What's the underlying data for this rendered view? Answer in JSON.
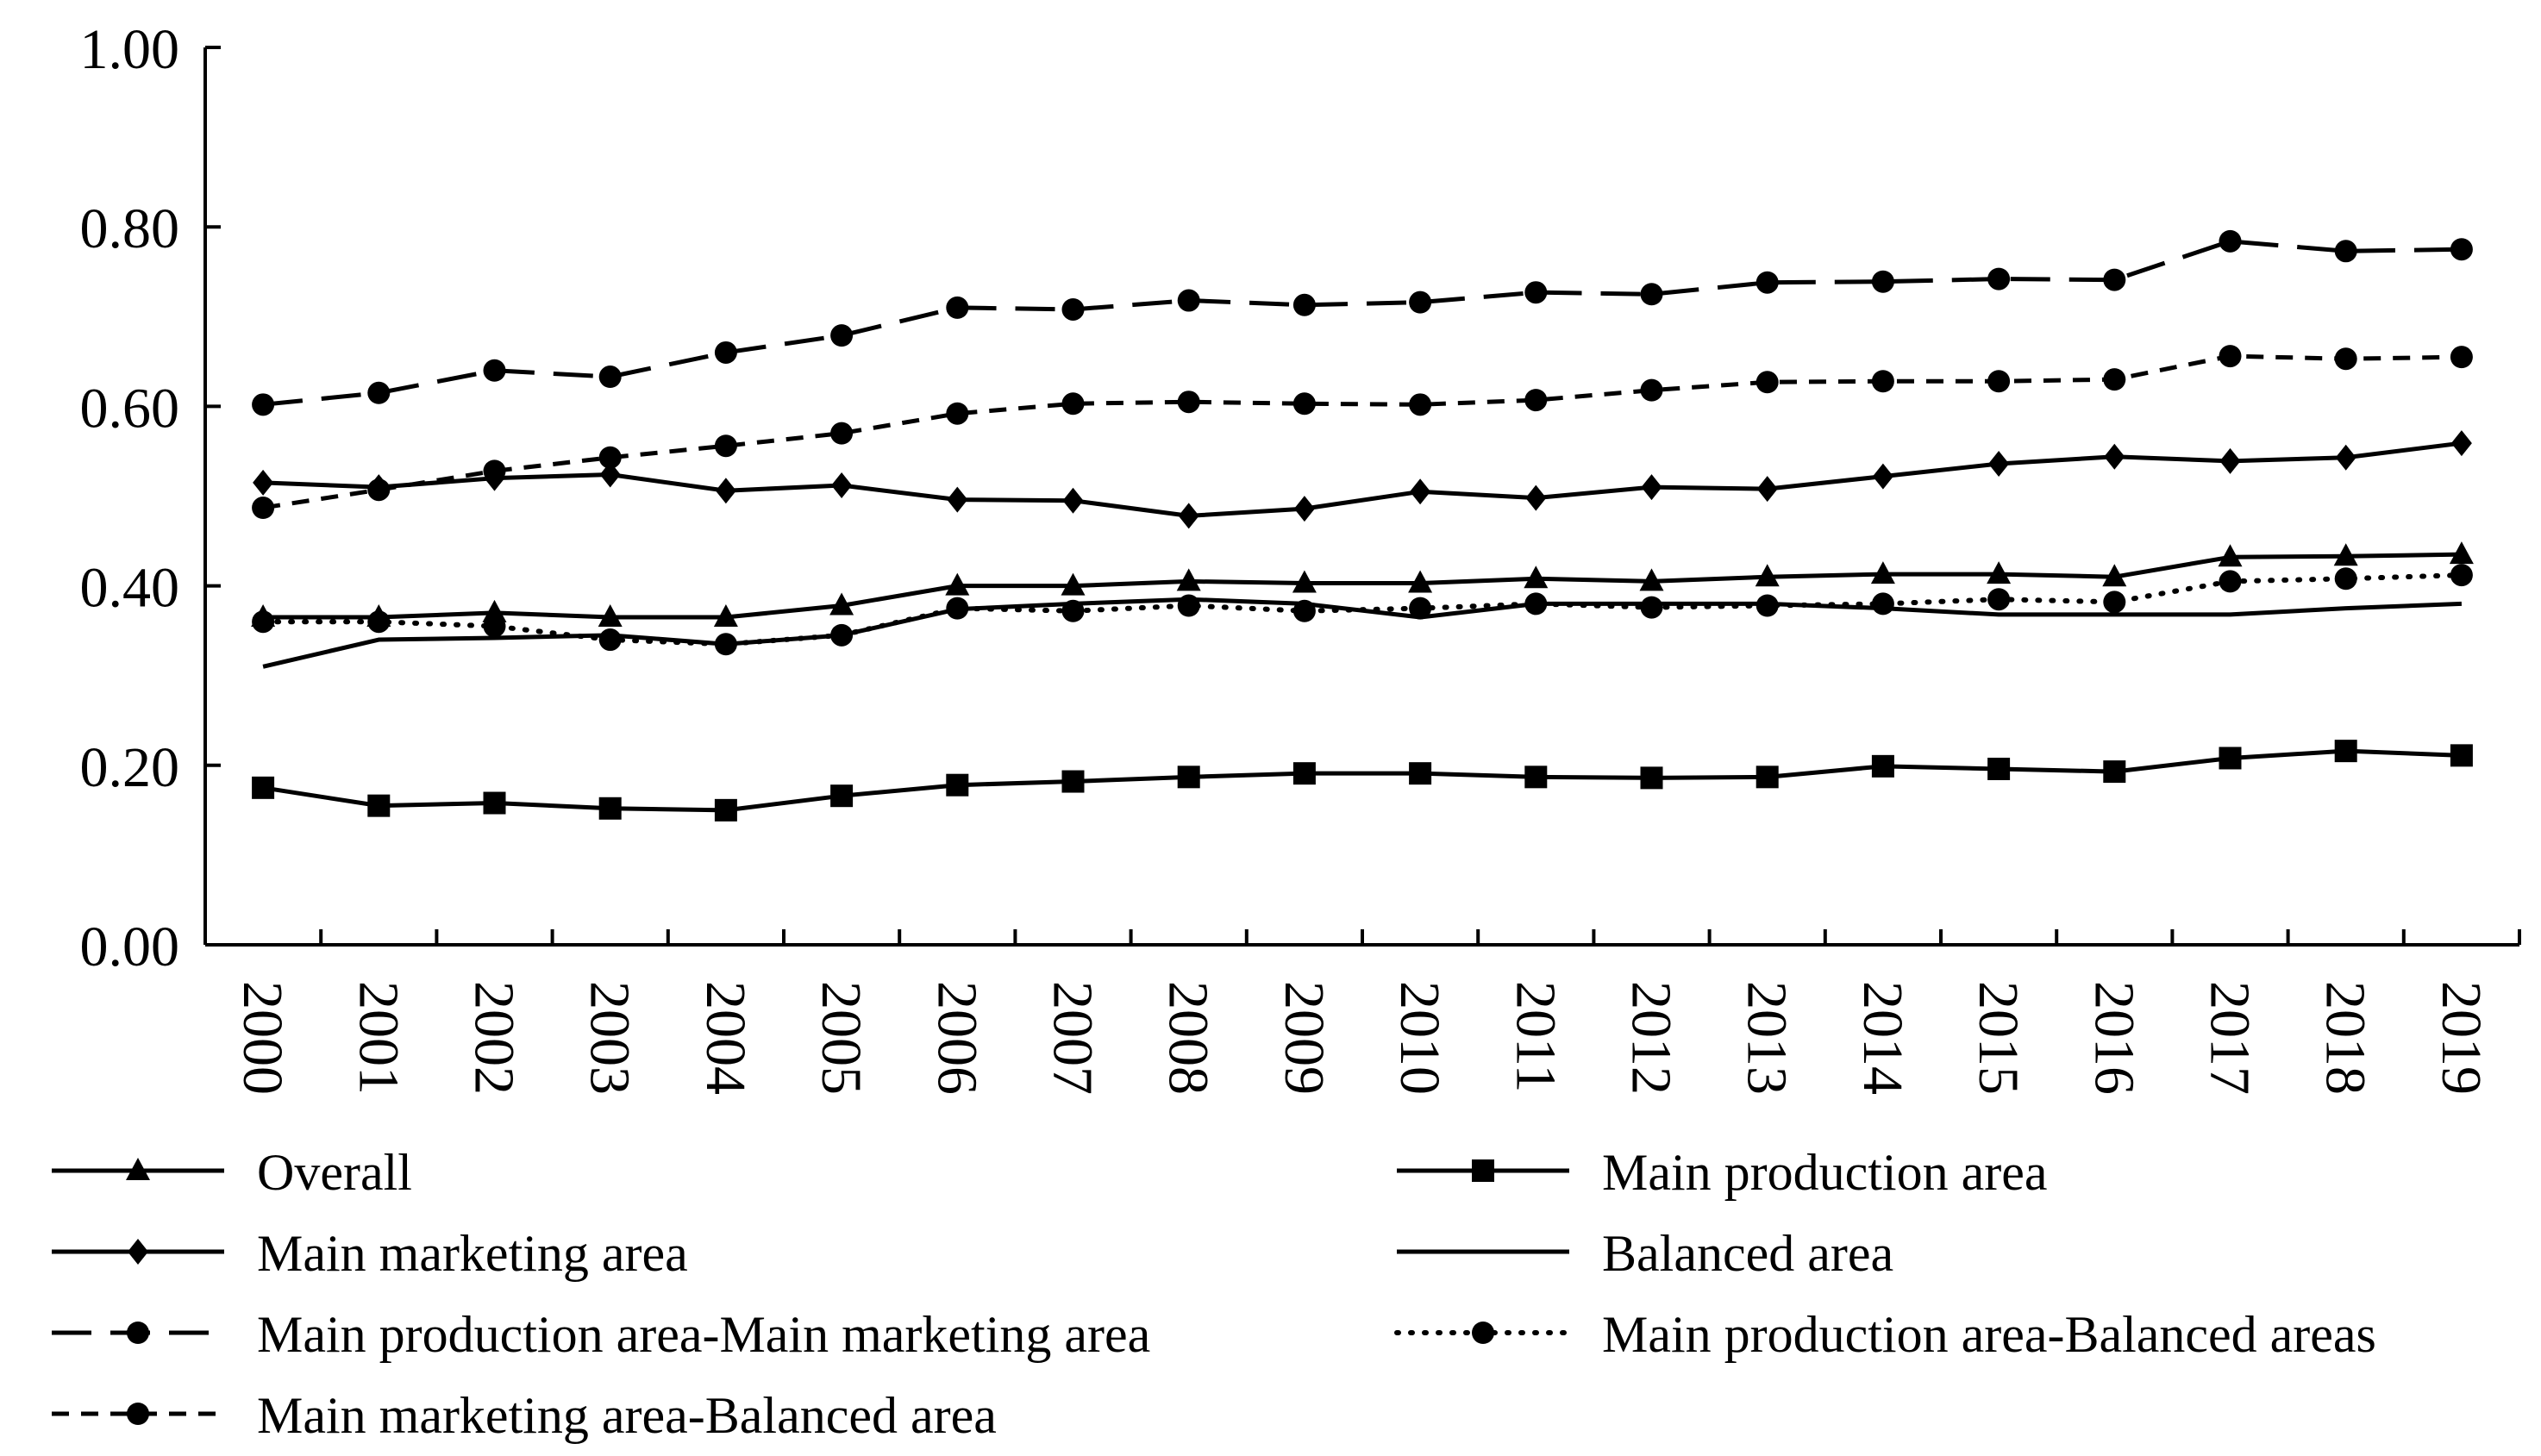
{
  "chart_data": {
    "type": "line",
    "title": "",
    "xlabel": "",
    "ylabel": "",
    "ylim": [
      0,
      1
    ],
    "yticks": [
      "0.00",
      "0.20",
      "0.40",
      "0.60",
      "0.80",
      "1.00"
    ],
    "categories": [
      "2000",
      "2001",
      "2002",
      "2003",
      "2004",
      "2005",
      "2006",
      "2007",
      "2008",
      "2009",
      "2010",
      "2011",
      "2012",
      "2013",
      "2014",
      "2015",
      "2016",
      "2017",
      "2018",
      "2019"
    ],
    "series": [
      {
        "name": "Overall",
        "marker": "triangle",
        "dash": "solid",
        "values": [
          0.365,
          0.365,
          0.37,
          0.365,
          0.365,
          0.378,
          0.4,
          0.4,
          0.405,
          0.403,
          0.403,
          0.408,
          0.405,
          0.41,
          0.413,
          0.413,
          0.41,
          0.432,
          0.433,
          0.435
        ]
      },
      {
        "name": "Main production area",
        "marker": "square",
        "dash": "solid",
        "values": [
          0.175,
          0.155,
          0.158,
          0.152,
          0.15,
          0.166,
          0.178,
          0.182,
          0.187,
          0.191,
          0.191,
          0.187,
          0.186,
          0.187,
          0.199,
          0.196,
          0.193,
          0.208,
          0.216,
          0.211
        ]
      },
      {
        "name": "Main marketing area",
        "marker": "diamond",
        "dash": "solid",
        "values": [
          0.515,
          0.51,
          0.52,
          0.524,
          0.506,
          0.512,
          0.496,
          0.495,
          0.478,
          0.486,
          0.505,
          0.498,
          0.51,
          0.508,
          0.522,
          0.536,
          0.544,
          0.539,
          0.543,
          0.559
        ]
      },
      {
        "name": "Balanced area",
        "marker": "none",
        "dash": "solid",
        "values": [
          0.31,
          0.34,
          0.342,
          0.345,
          0.335,
          0.345,
          0.374,
          0.38,
          0.385,
          0.38,
          0.365,
          0.38,
          0.38,
          0.38,
          0.375,
          0.368,
          0.368,
          0.368,
          0.375,
          0.38
        ]
      },
      {
        "name": "Main production area-Main marketing area",
        "marker": "circle",
        "dash": "long",
        "values": [
          0.602,
          0.615,
          0.64,
          0.633,
          0.66,
          0.679,
          0.71,
          0.708,
          0.718,
          0.713,
          0.716,
          0.727,
          0.725,
          0.738,
          0.739,
          0.742,
          0.741,
          0.784,
          0.773,
          0.775
        ]
      },
      {
        "name": "Main production area-Balanced areas",
        "marker": "circle",
        "dash": "dotted",
        "values": [
          0.36,
          0.36,
          0.355,
          0.34,
          0.335,
          0.345,
          0.375,
          0.372,
          0.378,
          0.372,
          0.375,
          0.38,
          0.376,
          0.378,
          0.38,
          0.385,
          0.382,
          0.405,
          0.408,
          0.412
        ]
      },
      {
        "name": "Main marketing area-Balanced area",
        "marker": "circle",
        "dash": "short",
        "values": [
          0.487,
          0.507,
          0.528,
          0.543,
          0.556,
          0.57,
          0.592,
          0.603,
          0.605,
          0.603,
          0.602,
          0.607,
          0.618,
          0.627,
          0.628,
          0.628,
          0.63,
          0.656,
          0.653,
          0.655
        ]
      }
    ]
  }
}
